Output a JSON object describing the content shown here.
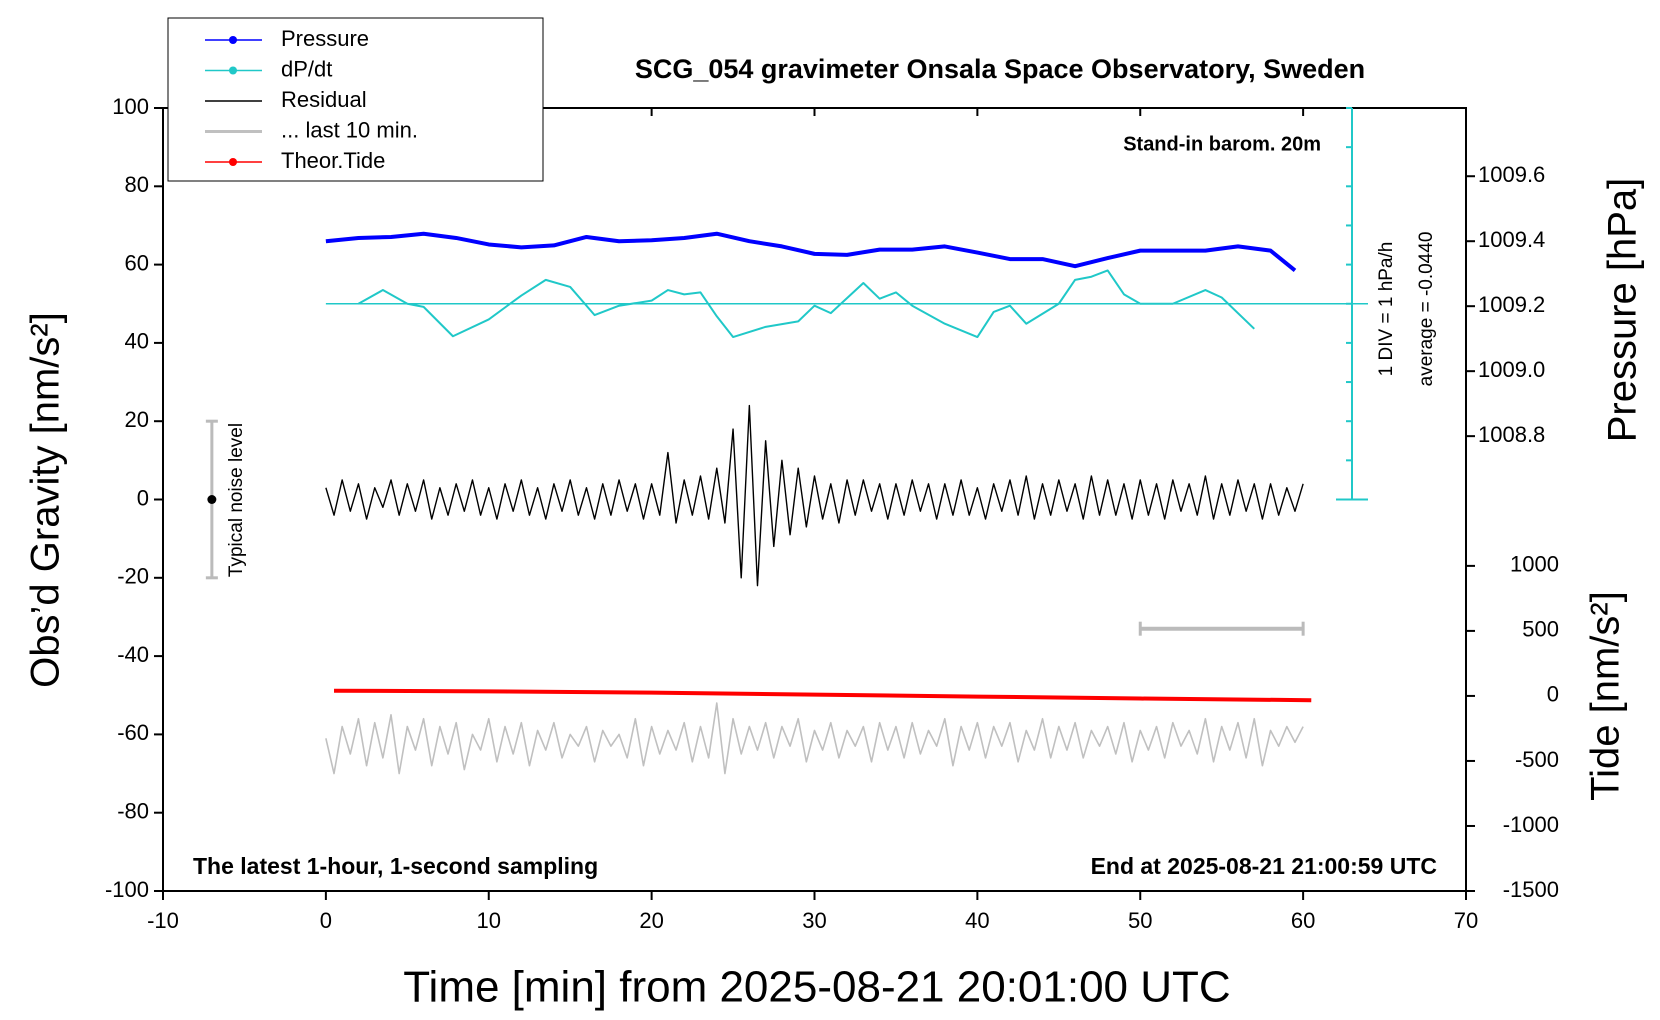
{
  "chart_data": {
    "type": "line",
    "title": "SCG_054 gravimeter Onsala Space Observatory, Sweden",
    "x_label": "Time [min] from 2025-08-21 20:01:00 UTC",
    "y_label": "Obs’d Gravity [nm/s²]",
    "y2_label": "Pressure [hPa]",
    "y3_label": "Tide [nm/s²]",
    "annotations": {
      "barometer": "Stand-in barom. 20m",
      "div": "1 DIV = 1 hPa/h",
      "average": "average = -0.0440",
      "sampling": "The latest 1-hour, 1-second sampling",
      "end": "End at 2025-08-21 21:00:59 UTC"
    },
    "xlim": [
      -10,
      70
    ],
    "xticks": [
      -10,
      0,
      10,
      20,
      30,
      40,
      50,
      60,
      70
    ],
    "ylim": [
      -100,
      100
    ],
    "yticks": [
      -100,
      -80,
      -60,
      -40,
      -20,
      0,
      20,
      40,
      60,
      80,
      100
    ],
    "y2lim": [
      1007.4,
      1009.81
    ],
    "y2ticks": [
      1008.8,
      {
        "value": 1009,
        "label": "1009.0"
      },
      1009.2,
      1009.4,
      1009.6
    ],
    "y3lim": [
      -1500,
      4521
    ],
    "y3ticks": [
      -1500,
      -1000,
      -500,
      0,
      500,
      1000
    ],
    "dpdt_ylim": [
      -15,
      5
    ],
    "dpdt_yticks": [
      -5,
      -4,
      -3,
      -2,
      -1,
      0,
      1,
      2,
      3,
      4,
      5
    ],
    "noise_level": {
      "label": "Typical noise level",
      "x": -7,
      "center": 0,
      "range": [
        -20,
        20
      ]
    },
    "window_marker": {
      "x": [
        50,
        60
      ],
      "y": -33
    },
    "series": [
      {
        "name": "Pressure",
        "color": "#0000ff",
        "axis": "y2",
        "marker": true,
        "x": [
          0,
          2,
          4,
          6,
          8,
          10,
          12,
          14,
          16,
          18,
          20,
          22,
          24,
          26,
          28,
          30,
          32,
          34,
          36,
          38,
          40,
          42,
          44,
          46,
          48,
          50,
          52,
          54,
          56,
          58,
          59.5
        ],
        "values": [
          1009.4,
          1009.41,
          1009.413,
          1009.423,
          1009.41,
          1009.39,
          1009.381,
          1009.387,
          1009.413,
          1009.4,
          1009.403,
          1009.41,
          1009.423,
          1009.4,
          1009.384,
          1009.361,
          1009.358,
          1009.374,
          1009.374,
          1009.384,
          1009.365,
          1009.345,
          1009.345,
          1009.323,
          1009.348,
          1009.371,
          1009.371,
          1009.371,
          1009.384,
          1009.371,
          1009.31
        ]
      },
      {
        "name": "dP/dt",
        "color": "#20c8c8",
        "axis": "dpdt",
        "marker": true,
        "x": [
          2,
          3.5,
          5,
          6,
          7.8,
          10,
          12,
          13.5,
          15,
          16.5,
          18,
          20,
          21,
          22,
          23,
          24,
          25,
          27,
          29,
          30,
          31,
          33,
          34,
          35,
          36,
          38,
          40,
          41,
          42,
          43,
          45,
          46,
          47,
          48,
          49,
          50,
          52,
          54,
          55,
          57
        ],
        "values": [
          0,
          0.35,
          0,
          -0.08,
          -0.83,
          -0.4,
          0.21,
          0.61,
          0.43,
          -0.29,
          -0.05,
          0.08,
          0.35,
          0.24,
          0.29,
          -0.32,
          -0.85,
          -0.59,
          -0.45,
          -0.05,
          -0.24,
          0.53,
          0.13,
          0.29,
          -0.05,
          -0.51,
          -0.85,
          -0.21,
          -0.05,
          -0.51,
          0,
          0.61,
          0.69,
          0.85,
          0.24,
          0,
          0,
          0.35,
          0.16,
          -0.64
        ]
      },
      {
        "name": "Residual",
        "color": "#000000",
        "axis": "y",
        "x": [
          0,
          0.5,
          1,
          1.5,
          2,
          2.5,
          3,
          3.5,
          4,
          4.5,
          5,
          5.5,
          6,
          6.5,
          7,
          7.5,
          8,
          8.5,
          9,
          9.5,
          10,
          10.5,
          11,
          11.5,
          12,
          12.5,
          13,
          13.5,
          14,
          14.5,
          15,
          15.5,
          16,
          16.5,
          17,
          17.5,
          18,
          18.5,
          19,
          19.5,
          20,
          20.5,
          21,
          21.5,
          22,
          22.5,
          23,
          23.5,
          24,
          24.5,
          25,
          25.5,
          26,
          26.5,
          27,
          27.5,
          28,
          28.5,
          29,
          29.5,
          30,
          30.5,
          31,
          31.5,
          32,
          32.5,
          33,
          33.5,
          34,
          34.5,
          35,
          35.5,
          36,
          36.5,
          37,
          37.5,
          38,
          38.5,
          39,
          39.5,
          40,
          40.5,
          41,
          41.5,
          42,
          42.5,
          43,
          43.5,
          44,
          44.5,
          45,
          45.5,
          46,
          46.5,
          47,
          47.5,
          48,
          48.5,
          49,
          49.5,
          50,
          50.5,
          51,
          51.5,
          52,
          52.5,
          53,
          53.5,
          54,
          54.5,
          55,
          55.5,
          56,
          56.5,
          57,
          57.5,
          58,
          58.5,
          59,
          59.5,
          60
        ],
        "values": [
          3,
          -4,
          5,
          -3,
          4,
          -5,
          3,
          -2,
          5,
          -4,
          4,
          -3,
          5,
          -5,
          3,
          -4,
          4,
          -3,
          5,
          -4,
          3,
          -5,
          4,
          -3,
          5,
          -4,
          3,
          -5,
          4,
          -3,
          5,
          -4,
          3,
          -5,
          4,
          -4,
          5,
          -3,
          4,
          -5,
          4,
          -4,
          12,
          -6,
          5,
          -4,
          6,
          -5,
          8,
          -6,
          18,
          -20,
          24,
          -22,
          15,
          -12,
          10,
          -9,
          8,
          -7,
          6,
          -5,
          4,
          -6,
          5,
          -4,
          5,
          -3,
          4,
          -5,
          4,
          -4,
          5,
          -3,
          4,
          -5,
          4,
          -4,
          5,
          -4,
          3,
          -5,
          4,
          -3,
          5,
          -4,
          6,
          -5,
          4,
          -4,
          5,
          -3,
          4,
          -5,
          6,
          -4,
          5,
          -4,
          4,
          -5,
          5,
          -4,
          4,
          -5,
          5,
          -3,
          4,
          -4,
          6,
          -5,
          4,
          -4,
          5,
          -3,
          4,
          -5,
          4,
          -4,
          3,
          -3,
          4
        ]
      },
      {
        "name": "... last 10 min.",
        "color": "#c0c0c0",
        "axis": "y",
        "x": [
          0,
          0.5,
          1,
          1.5,
          2,
          2.5,
          3,
          3.5,
          4,
          4.5,
          5,
          5.5,
          6,
          6.5,
          7,
          7.5,
          8,
          8.5,
          9,
          9.5,
          10,
          10.5,
          11,
          11.5,
          12,
          12.5,
          13,
          13.5,
          14,
          14.5,
          15,
          15.5,
          16,
          16.5,
          17,
          17.5,
          18,
          18.5,
          19,
          19.5,
          20,
          20.5,
          21,
          21.5,
          22,
          22.5,
          23,
          23.5,
          24,
          24.5,
          25,
          25.5,
          26,
          26.5,
          27,
          27.5,
          28,
          28.5,
          29,
          29.5,
          30,
          30.5,
          31,
          31.5,
          32,
          32.5,
          33,
          33.5,
          34,
          34.5,
          35,
          35.5,
          36,
          36.5,
          37,
          37.5,
          38,
          38.5,
          39,
          39.5,
          40,
          40.5,
          41,
          41.5,
          42,
          42.5,
          43,
          43.5,
          44,
          44.5,
          45,
          45.5,
          46,
          46.5,
          47,
          47.5,
          48,
          48.5,
          49,
          49.5,
          50,
          50.5,
          51,
          51.5,
          52,
          52.5,
          53,
          53.5,
          54,
          54.5,
          55,
          55.5,
          56,
          56.5,
          57,
          57.5,
          58,
          58.5,
          59,
          59.5,
          60
        ],
        "values": [
          -61,
          -70,
          -58,
          -65,
          -56,
          -68,
          -57,
          -66,
          -55,
          -70,
          -58,
          -64,
          -56,
          -68,
          -58,
          -65,
          -57,
          -69,
          -60,
          -64,
          -56,
          -67,
          -58,
          -65,
          -57,
          -68,
          -59,
          -64,
          -57,
          -66,
          -60,
          -63,
          -58,
          -67,
          -59,
          -63,
          -60,
          -66,
          -56,
          -68,
          -58,
          -65,
          -59,
          -64,
          -57,
          -67,
          -58,
          -66,
          -52,
          -70,
          -56,
          -65,
          -58,
          -64,
          -57,
          -66,
          -58,
          -63,
          -56,
          -67,
          -59,
          -64,
          -57,
          -66,
          -59,
          -63,
          -58,
          -67,
          -57,
          -64,
          -58,
          -66,
          -57,
          -65,
          -59,
          -63,
          -56,
          -68,
          -58,
          -64,
          -57,
          -66,
          -58,
          -63,
          -57,
          -67,
          -59,
          -64,
          -56,
          -66,
          -58,
          -64,
          -57,
          -66,
          -59,
          -63,
          -58,
          -65,
          -57,
          -67,
          -59,
          -64,
          -58,
          -66,
          -57,
          -63,
          -59,
          -65,
          -56,
          -67,
          -58,
          -64,
          -57,
          -66,
          -56,
          -68,
          -59,
          -63,
          -58,
          -62,
          -58
        ]
      },
      {
        "name": "Theor.Tide",
        "color": "#ff0000",
        "axis": "y3",
        "marker": true,
        "x": [
          0.5,
          10,
          20,
          30,
          40,
          50,
          60.5
        ],
        "values": [
          40,
          35,
          25,
          10,
          -5,
          -20,
          -33
        ]
      }
    ]
  }
}
